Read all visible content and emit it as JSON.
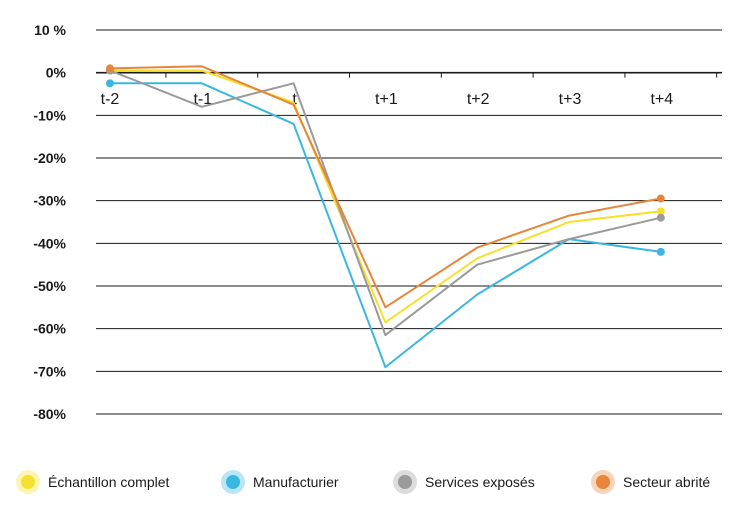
{
  "chart_data": {
    "type": "line",
    "categories": [
      "t-2",
      "t-1",
      "t",
      "t+1",
      "t+2",
      "t+3",
      "t+4"
    ],
    "y_ticks": [
      "10 %",
      "0%",
      "-10%",
      "-20%",
      "-30%",
      "-40%",
      "-50%",
      "-60%",
      "-70%",
      "-80%"
    ],
    "ylim": [
      -80,
      10
    ],
    "grid": true,
    "legend_position": "bottom",
    "series": [
      {
        "name": "Échantillon complet",
        "color": "#f5e12c",
        "values": [
          0.5,
          0.5,
          -7,
          -58.5,
          -43.5,
          -35,
          -32.5
        ]
      },
      {
        "name": "Manufacturier",
        "color": "#3ab7e0",
        "values": [
          -2.5,
          -2.5,
          -12,
          -69,
          -52,
          -39,
          -42
        ]
      },
      {
        "name": "Services exposés",
        "color": "#9a9a9a",
        "values": [
          0.5,
          -8,
          -2.5,
          -61.5,
          -45,
          -39,
          -34
        ]
      },
      {
        "name": "Secteur abrité",
        "color": "#e8853a",
        "values": [
          1,
          1.5,
          -7.5,
          -55,
          -41,
          -33.5,
          -29.5
        ]
      }
    ]
  }
}
